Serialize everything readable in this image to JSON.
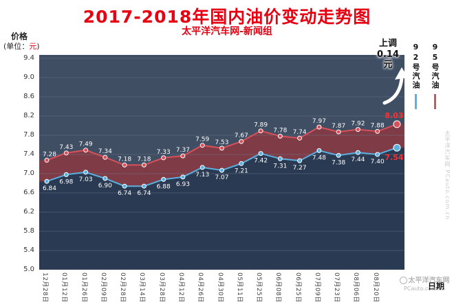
{
  "header": {
    "title": "2017-2018年国内油价变动走势图",
    "subtitle": "太平洋汽车网-新闻组"
  },
  "y_axis_title": {
    "title": "价格",
    "unit_prefix": "(单位：",
    "unit": "元",
    "unit_suffix": ")"
  },
  "x_axis_title": "日期",
  "annotation": {
    "action": "上调",
    "amount": "0.14",
    "unit": "元"
  },
  "legend": [
    {
      "label": "92号汽油",
      "color": "#5ab0e0"
    },
    {
      "label": "95号汽油",
      "color": "#d9505a"
    }
  ],
  "watermark": {
    "line1": "太平洋汽车网",
    "line2": "PCauto.com.cn"
  },
  "side_watermark": "太平洋汽车网 PCauto.com.cn",
  "chart_data": {
    "type": "line",
    "title": "2017-2018年国内油价变动走势图",
    "categories": [
      "12月28日",
      "01月12日",
      "01月26日",
      "02月09日",
      "02月28日",
      "03月14日",
      "03月28日",
      "04月12日",
      "04月26日",
      "04月30日",
      "05月11日",
      "05月25日",
      "06月08日",
      "06月25日",
      "07月09日",
      "07月23日",
      "08月06日",
      "08月20日",
      ""
    ],
    "series": [
      {
        "name": "95号汽油",
        "line_color": "#d9505a",
        "area_color": "#7f3c46",
        "values": [
          "7.28",
          "7.43",
          "7.49",
          "7.34",
          "7.18",
          "7.18",
          "7.33",
          "7.37",
          "7.59",
          "7.53",
          "7.67",
          "7.89",
          "7.78",
          "7.74",
          "7.97",
          "7.87",
          "7.92",
          "7.88",
          "8.03"
        ]
      },
      {
        "name": "92号汽油",
        "line_color": "#5ab0e0",
        "area_color": "#2a3a52",
        "values": [
          "6.84",
          "6.98",
          "7.03",
          "6.90",
          "6.74",
          "6.74",
          "6.88",
          "6.93",
          "7.13",
          "7.07",
          "7.21",
          "7.42",
          "7.31",
          "7.27",
          "7.48",
          "7.38",
          "7.44",
          "7.40",
          "7.54"
        ]
      }
    ],
    "ylim": [
      5.0,
      9.4
    ],
    "yticks": [
      "9.4",
      "9.0",
      "8.6",
      "8.2",
      "7.8",
      "7.4",
      "7.0",
      "6.6",
      "6.2",
      "5.8",
      "5.4",
      "5.0"
    ],
    "xlabel": "日期",
    "ylabel": "价格(单位：元)",
    "last_point_change": "上调0.14元",
    "highlight_last_color": "#ff2f2f",
    "plot_bg": "#3f4e63",
    "grid_color": "#6b788c",
    "legend_position": "right",
    "grid": "horizontal"
  }
}
